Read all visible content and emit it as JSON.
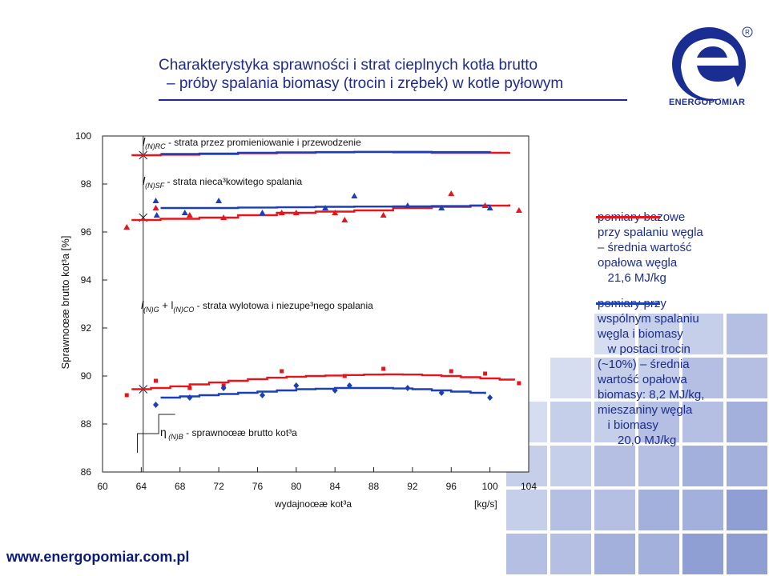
{
  "title": {
    "line1": "Charakterystyka sprawności i strat cieplnych kotła brutto",
    "line2": "– próby spalania biomasy (trocin i zrębek) w kotle pyłowym"
  },
  "logo": {
    "text": "ENERGOPOMIAR",
    "mark": "R"
  },
  "footer": {
    "url": "www.energopomiar.com.pl"
  },
  "legend": {
    "base": {
      "color": "#e8141b",
      "lines": [
        "pomiary bazowe",
        "przy spalaniu węgla",
        "– średnia wartość",
        "opałowa węgla",
        "   21,6 MJ/kg"
      ]
    },
    "cofiring": {
      "color": "#1c3fb8",
      "lines": [
        "pomiary przy",
        "wspólnym spalaniu",
        "węgla i biomasy",
        "   w postaci trocin",
        "(~10%) – średnia",
        "wartość opałowa",
        "biomasy: 8,2 MJ/kg,",
        "mieszaniny węgla",
        "   i biomasy",
        "      20,0 MJ/kg"
      ]
    }
  },
  "chart_data": {
    "type": "line",
    "title": "",
    "xlabel": "wydajnoœæ kot³a",
    "xunit": "[kg/s]",
    "ylabel": "Sprawnoœæ brutto kot³a [%]",
    "xlim": [
      60,
      104
    ],
    "ylim": [
      86,
      100
    ],
    "xticks": [
      "60",
      "64",
      "68",
      "72",
      "76",
      "80",
      "84",
      "88",
      "92",
      "96",
      "100",
      "104"
    ],
    "yticks": [
      "86",
      "88",
      "90",
      "92",
      "94",
      "96",
      "98",
      "100"
    ],
    "grid": false,
    "annotations": {
      "rc": {
        "sym": "l",
        "sub": "(N)RC",
        "text": " - strata przez promieniowanie i przewodzenie"
      },
      "sf": {
        "sym": "l",
        "sub": "(N)SF",
        "text": " - strata nieca³kowitego spalania"
      },
      "g": {
        "sym": "l",
        "sub": "(N)G",
        "mid": " + l",
        "sub2": "(N)CO",
        "text": " - strata wylotowa i niezupe³nego spalania"
      },
      "eta": {
        "sym": "η",
        "sub": " (N)B",
        "text": " - sprawnoœæ brutto kot³a"
      }
    },
    "series": [
      {
        "group": "base",
        "color": "#e8141b",
        "x": [
          63,
          66,
          70,
          74,
          78,
          82,
          86,
          90,
          94,
          98,
          102
        ],
        "y": [
          99.2,
          99.22,
          99.25,
          99.28,
          99.3,
          99.32,
          99.33,
          99.32,
          99.3,
          99.3,
          99.33
        ]
      },
      {
        "group": "base",
        "color": "#e8141b",
        "x": [
          63,
          66,
          70,
          74,
          78,
          82,
          86,
          90,
          94,
          98,
          102
        ],
        "y": [
          96.5,
          96.55,
          96.6,
          96.7,
          96.8,
          96.85,
          96.9,
          97.0,
          97.05,
          97.1,
          97.15
        ]
      },
      {
        "group": "base",
        "color": "#e8141b",
        "x": [
          63,
          65,
          67,
          69,
          71,
          73,
          75,
          77,
          79,
          81,
          83,
          85,
          87,
          89,
          91,
          93,
          95,
          97,
          99,
          101,
          102.5
        ],
        "y": [
          89.45,
          89.5,
          89.57,
          89.65,
          89.73,
          89.8,
          89.87,
          89.93,
          89.97,
          90.0,
          90.02,
          90.04,
          90.06,
          90.07,
          90.06,
          90.03,
          90.0,
          89.95,
          89.9,
          89.85,
          89.82
        ]
      },
      {
        "group": "cofiring",
        "color": "#1c3fb8",
        "x": [
          66,
          70,
          74,
          78,
          82,
          86,
          90,
          94,
          98,
          100
        ],
        "y": [
          99.25,
          99.27,
          99.3,
          99.32,
          99.33,
          99.34,
          99.34,
          99.33,
          99.33,
          99.32
        ]
      },
      {
        "group": "cofiring",
        "color": "#1c3fb8",
        "x": [
          66,
          70,
          74,
          78,
          82,
          86,
          90,
          94,
          98,
          100
        ],
        "y": [
          97.0,
          97.0,
          97.02,
          97.03,
          97.05,
          97.06,
          97.07,
          97.08,
          97.1,
          97.1
        ]
      },
      {
        "group": "cofiring",
        "color": "#1c3fb8",
        "x": [
          66,
          68,
          70,
          72,
          74,
          76,
          78,
          80,
          82,
          84,
          86,
          88,
          90,
          92,
          94,
          96,
          98,
          99.5
        ],
        "y": [
          89.1,
          89.15,
          89.2,
          89.25,
          89.3,
          89.35,
          89.4,
          89.45,
          89.47,
          89.5,
          89.5,
          89.5,
          89.48,
          89.45,
          89.4,
          89.35,
          89.3,
          89.25
        ]
      }
    ],
    "markers": [
      {
        "group": "base",
        "shape": "triangle",
        "color": "#e8141b",
        "points": [
          [
            62.5,
            96.2
          ],
          [
            65.5,
            97.0
          ],
          [
            69,
            96.7
          ],
          [
            72.5,
            96.6
          ],
          [
            78.5,
            96.8
          ],
          [
            80,
            96.8
          ],
          [
            84,
            96.8
          ],
          [
            85,
            96.5
          ],
          [
            89,
            96.7
          ],
          [
            96,
            97.6
          ],
          [
            99.5,
            97.1
          ],
          [
            103,
            96.9
          ]
        ]
      },
      {
        "group": "base",
        "shape": "square",
        "color": "#e8141b",
        "points": [
          [
            62.5,
            89.2
          ],
          [
            65.5,
            89.8
          ],
          [
            69,
            89.5
          ],
          [
            72.5,
            89.6
          ],
          [
            78.5,
            90.2
          ],
          [
            85,
            90.0
          ],
          [
            89,
            90.3
          ],
          [
            96,
            90.2
          ],
          [
            99.5,
            90.1
          ],
          [
            103,
            89.7
          ]
        ]
      },
      {
        "group": "cofiring",
        "shape": "triangle",
        "color": "#1c3fb8",
        "points": [
          [
            65.5,
            97.3
          ],
          [
            65.6,
            96.7
          ],
          [
            68.5,
            96.8
          ],
          [
            72,
            97.3
          ],
          [
            76.5,
            96.8
          ],
          [
            83,
            97.0
          ],
          [
            86,
            97.5
          ],
          [
            91.5,
            97.1
          ],
          [
            95,
            97.0
          ],
          [
            100,
            97.0
          ]
        ]
      },
      {
        "group": "cofiring",
        "shape": "diamond",
        "color": "#1c3fb8",
        "points": [
          [
            65.5,
            88.8
          ],
          [
            69,
            89.1
          ],
          [
            72.5,
            89.5
          ],
          [
            76.5,
            89.2
          ],
          [
            80,
            89.6
          ],
          [
            84,
            89.4
          ],
          [
            85.5,
            89.6
          ],
          [
            91.5,
            89.5
          ],
          [
            95,
            89.3
          ],
          [
            100,
            89.1
          ]
        ]
      }
    ]
  }
}
